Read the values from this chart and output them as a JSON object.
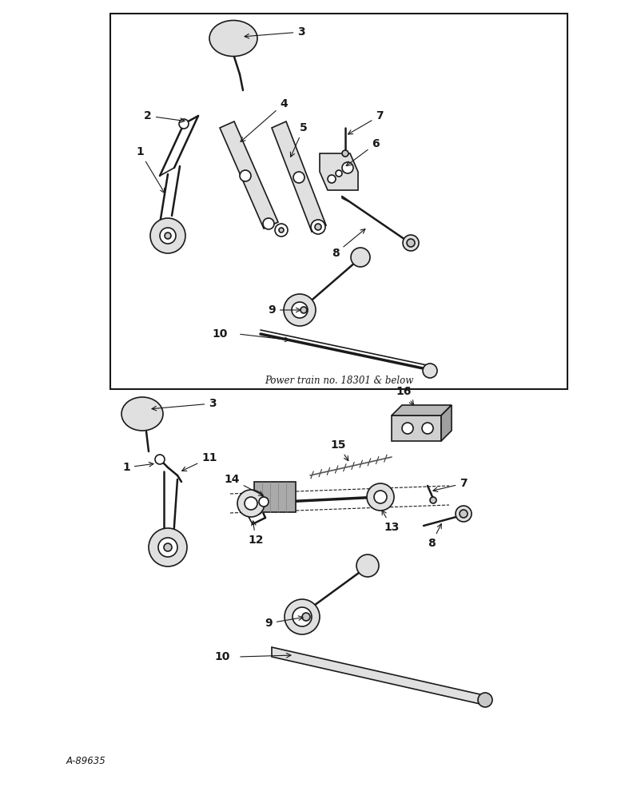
{
  "bg_color": "#ffffff",
  "line_color": "#1a1a1a",
  "fig_width": 7.72,
  "fig_height": 10.0,
  "caption_top": "Power train no. 18301 & below",
  "caption_bottom": "A-89635"
}
